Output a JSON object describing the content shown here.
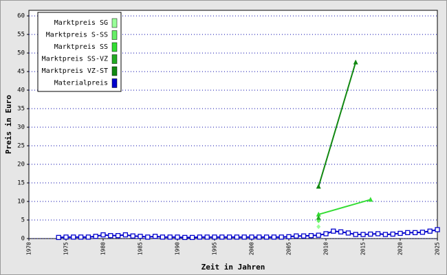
{
  "chart_data": {
    "type": "line",
    "xlabel": "Zeit in Jahren",
    "ylabel": "Preis in Euro",
    "xlim": [
      1970,
      2025
    ],
    "xticks": [
      1970,
      1975,
      1980,
      1985,
      1990,
      1995,
      2000,
      2005,
      2010,
      2015,
      2020,
      2025
    ],
    "ylim": [
      0,
      61.5
    ],
    "yticks": [
      0,
      5,
      10,
      15,
      20,
      25,
      30,
      35,
      40,
      45,
      50,
      55,
      60
    ],
    "grid": true,
    "legend": "top-left",
    "series": [
      {
        "name": "Marktpreis SG",
        "color": "#99ff99",
        "marker": "diamond",
        "x": [
          2009
        ],
        "values": [
          3.2
        ]
      },
      {
        "name": "Marktpreis S-SS",
        "color": "#66ee66",
        "marker": "diamond",
        "x": [
          2009
        ],
        "values": [
          4.8
        ]
      },
      {
        "name": "Marktpreis SS",
        "color": "#33dd33",
        "marker": "triangle",
        "x": [
          2009,
          2016
        ],
        "values": [
          6.5,
          10.5
        ]
      },
      {
        "name": "Marktpreis SS-VZ",
        "color": "#22aa22",
        "marker": "triangle",
        "x": [
          2009
        ],
        "values": [
          5.6
        ]
      },
      {
        "name": "Marktpreis VZ-ST",
        "color": "#118811",
        "marker": "triangle",
        "x": [
          2009,
          2014
        ],
        "values": [
          14,
          47.5
        ]
      },
      {
        "name": "Materialpreis",
        "color": "#0000cc",
        "marker": "square",
        "x": [
          1974,
          1975,
          1976,
          1977,
          1978,
          1979,
          1980,
          1981,
          1982,
          1983,
          1984,
          1985,
          1986,
          1987,
          1988,
          1989,
          1990,
          1991,
          1992,
          1993,
          1994,
          1995,
          1996,
          1997,
          1998,
          1999,
          2000,
          2001,
          2002,
          2003,
          2004,
          2005,
          2006,
          2007,
          2008,
          2009,
          2010,
          2011,
          2012,
          2013,
          2014,
          2015,
          2016,
          2017,
          2018,
          2019,
          2020,
          2021,
          2022,
          2023,
          2024,
          2025
        ],
        "values": [
          0.3,
          0.4,
          0.4,
          0.4,
          0.4,
          0.6,
          1.0,
          0.8,
          0.8,
          1.0,
          0.7,
          0.6,
          0.4,
          0.6,
          0.4,
          0.4,
          0.4,
          0.3,
          0.3,
          0.4,
          0.4,
          0.4,
          0.4,
          0.4,
          0.4,
          0.4,
          0.4,
          0.4,
          0.4,
          0.4,
          0.4,
          0.5,
          0.7,
          0.7,
          0.8,
          0.9,
          1.3,
          2.0,
          1.8,
          1.5,
          1.1,
          1.1,
          1.2,
          1.3,
          1.1,
          1.2,
          1.4,
          1.6,
          1.6,
          1.7,
          2.0,
          2.4
        ]
      }
    ]
  }
}
